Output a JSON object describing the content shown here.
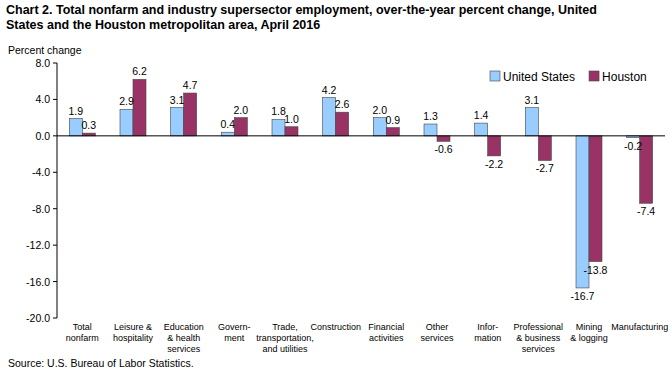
{
  "chart_data": {
    "type": "bar",
    "title": "Chart 2. Total nonfarm and industry  supersector  employment, over-the-year percent change, United\nStates and the Houston  metropolitan area, April 2016",
    "y_label": "Percent change",
    "source": "Source: U.S. Bureau of Labor Statistics.",
    "categories": [
      "Total\nnonfarm",
      "Leisure &\nhospitality",
      "Education\n& health\nservices",
      "Govern-\nment",
      "Trade,\ntransportation,\nand utilities",
      "Construction",
      "Financial\nactivities",
      "Other\nservices",
      "Infor-\nmation",
      "Professional\n& business\nservices",
      "Mining\n& logging",
      "Manufacturing"
    ],
    "series": [
      {
        "name": "United States",
        "color": "#99ccff",
        "values": [
          1.9,
          2.9,
          3.1,
          0.4,
          1.8,
          4.2,
          2.0,
          1.3,
          1.4,
          3.1,
          -16.7,
          -0.2
        ],
        "value_labels": [
          "1.9",
          "2.9",
          "3.1",
          "0.4",
          "1.8",
          "4.2",
          "2.0",
          "1.3",
          "1.4",
          "3.1",
          "-16.7",
          "-0.2"
        ]
      },
      {
        "name": "Houston",
        "color": "#993366",
        "values": [
          0.3,
          6.2,
          4.7,
          2.0,
          1.0,
          2.6,
          0.9,
          -0.6,
          -2.2,
          -2.7,
          -13.8,
          -7.4
        ],
        "value_labels": [
          "0.3",
          "6.2",
          "4.7",
          "2.0",
          "1.0",
          "2.6",
          "0.9",
          "-0.6",
          "-2.2",
          "-2.7",
          "-13.8",
          "-7.4"
        ]
      }
    ],
    "ylim": [
      -20,
      8
    ],
    "yticks": [
      {
        "value": -20,
        "label": "-20.0"
      },
      {
        "value": -16,
        "label": "-16.0"
      },
      {
        "value": -12,
        "label": "-12.0"
      },
      {
        "value": -8,
        "label": "-8.0"
      },
      {
        "value": -4,
        "label": "-4.0"
      },
      {
        "value": 0,
        "label": "0.0"
      },
      {
        "value": 4,
        "label": "4.0"
      },
      {
        "value": 8,
        "label": "8.0"
      }
    ],
    "grid": false,
    "legend": "top-right",
    "data_labels": true
  }
}
